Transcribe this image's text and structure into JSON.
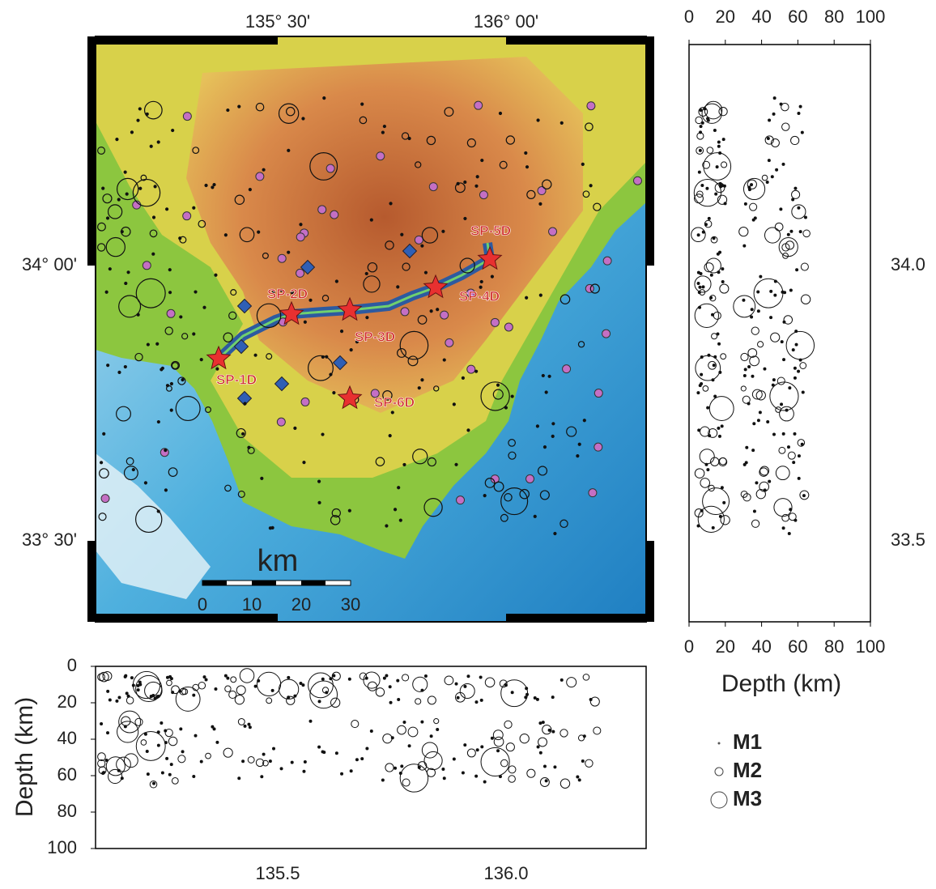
{
  "map": {
    "top_ticks": [
      "135° 30'",
      "136° 00'"
    ],
    "left_ticks": [
      "34° 00'",
      "33° 30'"
    ],
    "scale": {
      "unit": "km",
      "labels": [
        "0",
        "10",
        "20",
        "30"
      ]
    },
    "stations": [
      {
        "label": "SP-1D"
      },
      {
        "label": "SP-2D"
      },
      {
        "label": "SP-3D"
      },
      {
        "label": "SP-4D"
      },
      {
        "label": "SP-5D"
      },
      {
        "label": "SP-6D"
      }
    ]
  },
  "right_panel": {
    "depth_ticks": [
      0,
      20,
      40,
      60,
      80,
      100
    ],
    "lat_ticks": [
      "34.0",
      "33.5"
    ],
    "axis_title": "Depth (km)"
  },
  "bottom_panel": {
    "depth_ticks": [
      0,
      20,
      40,
      60,
      80,
      100
    ],
    "lon_ticks": [
      "135.5",
      "136.0"
    ],
    "axis_title": "Depth (km)"
  },
  "legend": {
    "labels": [
      "M1",
      "M2",
      "M3"
    ]
  }
}
